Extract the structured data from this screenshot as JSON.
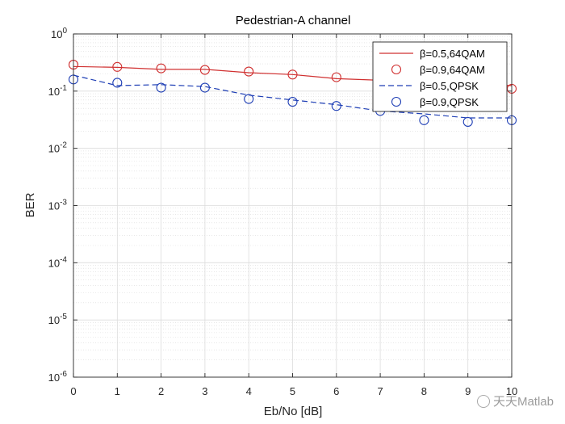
{
  "watermark": {
    "text": "天天Matlab",
    "icon": "wechat-icon"
  },
  "chart_data": {
    "type": "line",
    "title": "Pedestrian-A channel",
    "xlabel": "Eb/No [dB]",
    "ylabel": "BER",
    "xlim": [
      0,
      10
    ],
    "ylim": [
      1e-06,
      1
    ],
    "yscale": "log",
    "xticks": [
      "0",
      "1",
      "2",
      "3",
      "4",
      "5",
      "6",
      "7",
      "8",
      "9",
      "10"
    ],
    "yticks": [
      {
        "base": "10",
        "exp": "-6"
      },
      {
        "base": "10",
        "exp": "-5"
      },
      {
        "base": "10",
        "exp": "-4"
      },
      {
        "base": "10",
        "exp": "-3"
      },
      {
        "base": "10",
        "exp": "-2"
      },
      {
        "base": "10",
        "exp": "-1"
      },
      {
        "base": "10",
        "exp": "0"
      }
    ],
    "grid": true,
    "minor_grid": true,
    "legend_position": "top-right",
    "series": [
      {
        "name": "β=0.5,64QAM",
        "style": "solid-line",
        "color": "#d03030",
        "x": [
          0,
          1,
          2,
          3,
          4,
          5,
          6,
          7,
          8,
          9,
          10
        ],
        "y": [
          0.27,
          0.26,
          0.24,
          0.24,
          0.21,
          0.195,
          0.165,
          0.155,
          0.145,
          0.135,
          0.125
        ]
      },
      {
        "name": "β=0.9,64QAM",
        "style": "circle-markers",
        "color": "#d03030",
        "x": [
          0,
          1,
          2,
          3,
          4,
          5,
          6,
          7,
          8,
          9,
          10
        ],
        "y": [
          0.29,
          0.265,
          0.25,
          0.235,
          0.22,
          0.195,
          0.175,
          0.16,
          0.145,
          0.13,
          0.11
        ]
      },
      {
        "name": "β=0.5,QPSK",
        "style": "dashed-line",
        "color": "#1f3fb5",
        "x": [
          0,
          1,
          2,
          3,
          4,
          5,
          6,
          7,
          8,
          9,
          10
        ],
        "y": [
          0.19,
          0.125,
          0.13,
          0.12,
          0.085,
          0.07,
          0.058,
          0.045,
          0.04,
          0.034,
          0.034
        ]
      },
      {
        "name": "β=0.9,QPSK",
        "style": "circle-markers",
        "color": "#1f3fb5",
        "x": [
          0,
          1,
          2,
          3,
          4,
          5,
          6,
          7,
          8,
          9,
          10
        ],
        "y": [
          0.16,
          0.14,
          0.115,
          0.115,
          0.073,
          0.065,
          0.055,
          0.045,
          0.031,
          0.029,
          0.031
        ]
      }
    ]
  }
}
